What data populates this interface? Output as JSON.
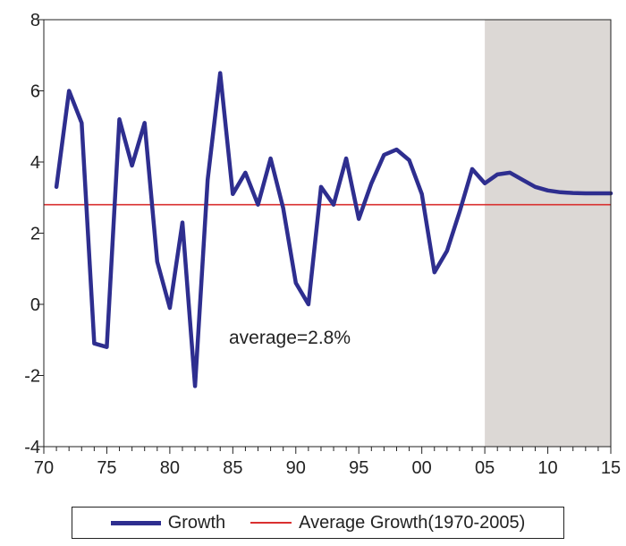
{
  "chart_data": {
    "type": "line",
    "x_tick_labels": [
      "70",
      "75",
      "80",
      "85",
      "90",
      "95",
      "00",
      "05",
      "10",
      "15"
    ],
    "y_tick_labels": [
      "-4",
      "-2",
      "0",
      "2",
      "4",
      "6",
      "8"
    ],
    "xlim": [
      1970,
      2015
    ],
    "ylim": [
      -4,
      8
    ],
    "grid": false,
    "legend_position": "bottom",
    "forecast_shading_range": [
      2005,
      2015
    ],
    "annotation": "average=2.8%",
    "series": [
      {
        "name": "Growth",
        "color": "#2e2e8f",
        "x": [
          1971,
          1972,
          1973,
          1974,
          1975,
          1976,
          1977,
          1978,
          1979,
          1980,
          1981,
          1982,
          1983,
          1984,
          1985,
          1986,
          1987,
          1988,
          1989,
          1990,
          1991,
          1992,
          1993,
          1994,
          1995,
          1996,
          1997,
          1998,
          1999,
          2000,
          2001,
          2002,
          2003,
          2004,
          2005,
          2006,
          2007,
          2008,
          2009,
          2010,
          2011,
          2012,
          2013,
          2014,
          2015
        ],
        "values": [
          3.3,
          6.0,
          5.1,
          -1.1,
          -1.2,
          5.2,
          3.9,
          5.1,
          1.2,
          -0.1,
          2.3,
          -2.3,
          3.5,
          6.5,
          3.1,
          3.7,
          2.8,
          4.1,
          2.7,
          0.6,
          0.0,
          3.3,
          2.8,
          4.1,
          2.4,
          3.4,
          4.2,
          4.35,
          4.05,
          3.1,
          0.9,
          1.5,
          2.6,
          3.8,
          3.4,
          3.65,
          3.7,
          3.5,
          3.3,
          3.2,
          3.15,
          3.13,
          3.12,
          3.12,
          3.12
        ]
      },
      {
        "name": "Average Growth(1970-2005)",
        "color": "#d93030",
        "value": 2.8
      }
    ]
  }
}
